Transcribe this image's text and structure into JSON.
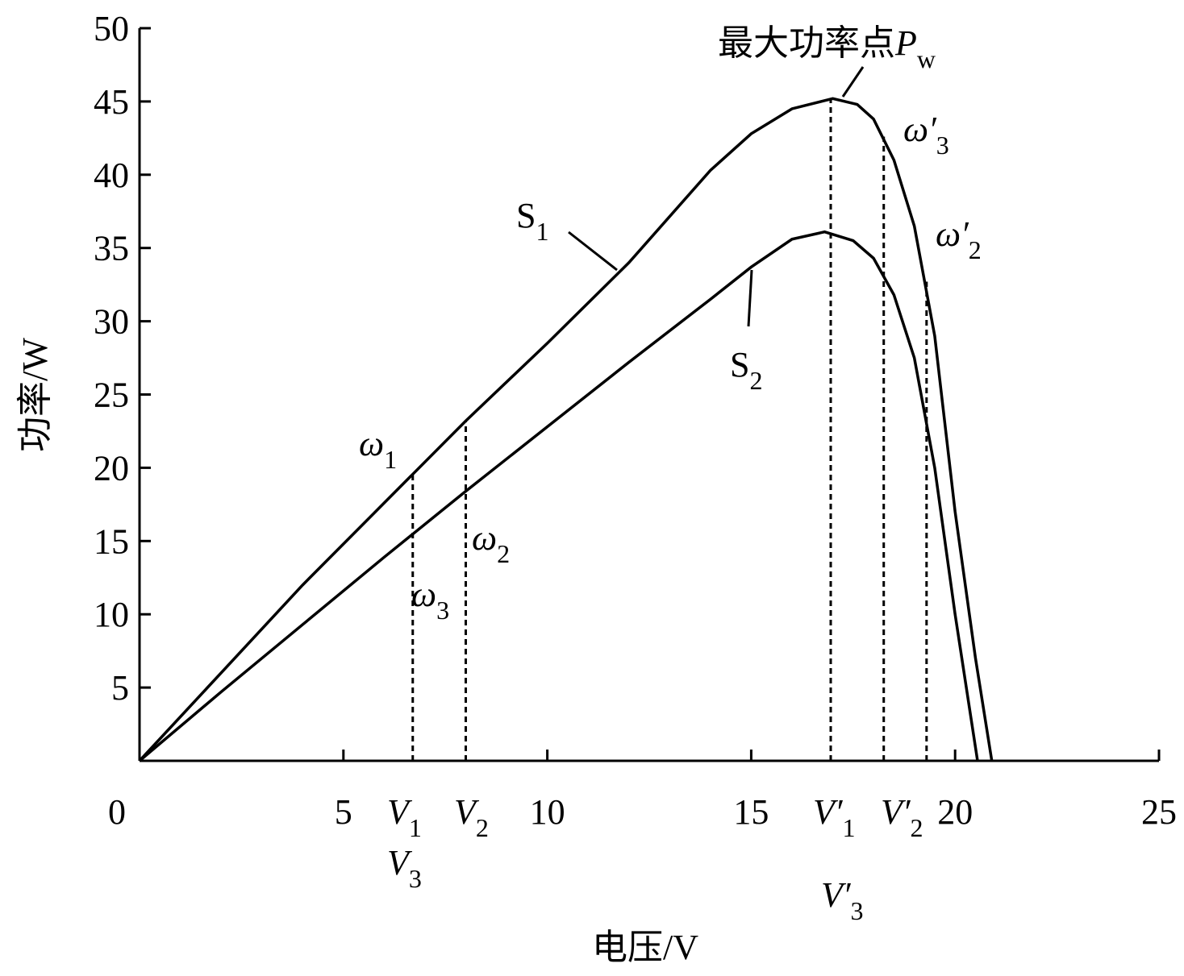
{
  "chart_data": {
    "type": "line",
    "xlabel": "电压/V",
    "ylabel": "功率/W",
    "xlim": [
      0,
      25
    ],
    "ylim": [
      0,
      50
    ],
    "xticks": [
      0,
      5,
      10,
      15,
      20,
      25
    ],
    "yticks": [
      5,
      10,
      15,
      20,
      25,
      30,
      35,
      40,
      45,
      50
    ],
    "series": [
      {
        "name": "S1",
        "color": "#000000",
        "x": [
          0,
          2,
          4,
          6,
          8,
          10,
          12,
          14,
          15,
          16,
          17,
          17.6,
          18,
          18.5,
          19,
          19.5,
          20,
          20.5,
          20.9
        ],
        "values": [
          0,
          6,
          12,
          17.6,
          23.2,
          28.5,
          34,
          40.3,
          42.8,
          44.5,
          45.2,
          44.8,
          43.8,
          41,
          36.5,
          29,
          17,
          7,
          0
        ]
      },
      {
        "name": "S2",
        "color": "#000000",
        "x": [
          0,
          2,
          4,
          6,
          8,
          10,
          12,
          14,
          15,
          16,
          16.8,
          17.5,
          18,
          18.5,
          19,
          19.5,
          20,
          20.55
        ],
        "values": [
          0,
          4.7,
          9.3,
          13.9,
          18.4,
          22.8,
          27.2,
          31.5,
          33.7,
          35.6,
          36.1,
          35.5,
          34.3,
          31.8,
          27.5,
          20,
          10,
          0
        ]
      }
    ],
    "reference_lines": [
      {
        "x": 6.7,
        "y": 19.5
      },
      {
        "x": 8,
        "y": 23.2
      },
      {
        "x": 16.95,
        "y": 45.2
      },
      {
        "x": 18.25,
        "y": 42.6
      },
      {
        "x": 19.3,
        "y": 32.7
      }
    ],
    "annotations": [
      {
        "var": "ω",
        "sub": "1"
      },
      {
        "text": "S",
        "sub": "1"
      },
      {
        "var": "ω",
        "sub": "2"
      },
      {
        "var": "ω",
        "sub": "3"
      },
      {
        "text": "S",
        "sub": "2"
      },
      {
        "var": "ω′",
        "sub": "3"
      },
      {
        "var": "ω′",
        "sub": "2"
      },
      {
        "var": "V",
        "sub": "1"
      },
      {
        "var": "V",
        "sub": "3"
      },
      {
        "var": "V",
        "sub": "2"
      },
      {
        "var": "V′",
        "sub": "1"
      },
      {
        "var": "V′",
        "sub": "3"
      },
      {
        "var": "V′",
        "sub": "2"
      },
      {
        "text": "最大功率点",
        "var": "P",
        "sub": "w"
      }
    ]
  }
}
